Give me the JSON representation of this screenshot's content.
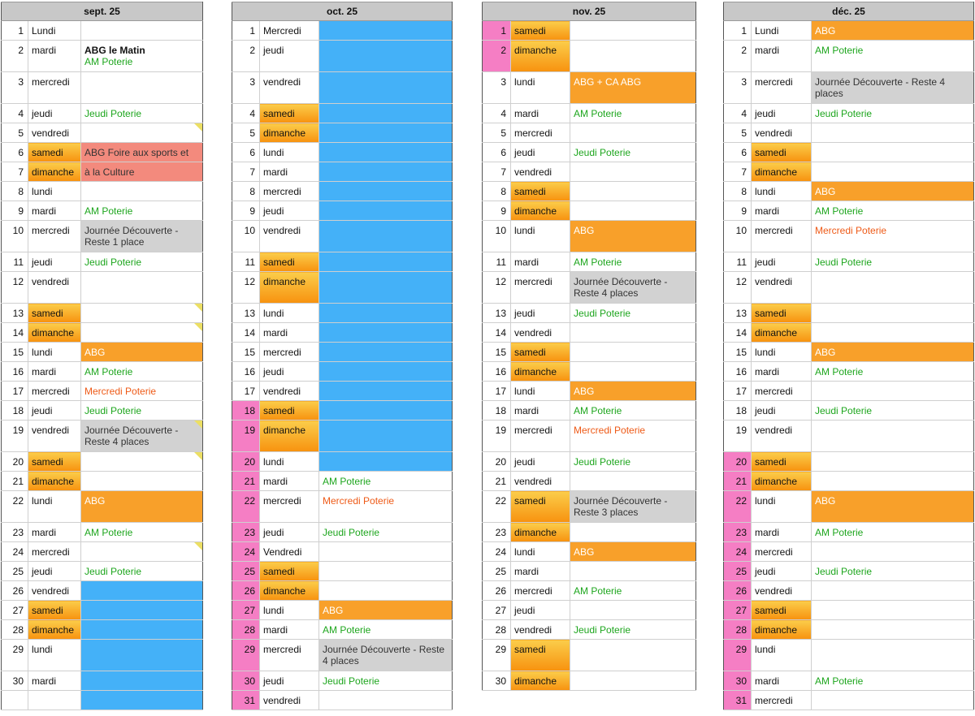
{
  "months": [
    {
      "header": "sept. 25",
      "rows": [
        {
          "n": "1",
          "d": "Lundi",
          "e": ""
        },
        {
          "n": "2",
          "d": "mardi",
          "e": "ABG le Matin",
          "e2": "AM Poterie",
          "c": "bold"
        },
        {
          "n": "3",
          "d": "mercredi",
          "e": ""
        },
        {
          "n": "4",
          "d": "jeudi",
          "e": "Jeudi Poterie",
          "c": "green"
        },
        {
          "n": "5",
          "d": "vendredi",
          "e": "",
          "note": true
        },
        {
          "n": "6",
          "d": "samedi",
          "e": "ABG Foire aux sports et",
          "c": "salmon",
          "we": true
        },
        {
          "n": "7",
          "d": "dimanche",
          "e": "à la Culture",
          "c": "salmon",
          "we": true
        },
        {
          "n": "8",
          "d": "lundi",
          "e": ""
        },
        {
          "n": "9",
          "d": "mardi",
          "e": "AM Poterie",
          "c": "green"
        },
        {
          "n": "10",
          "d": "mercredi",
          "e": "Journée Découverte - Reste 1 place",
          "c": "gray"
        },
        {
          "n": "11",
          "d": "jeudi",
          "e": "Jeudi Poterie",
          "c": "green"
        },
        {
          "n": "12",
          "d": "vendredi",
          "e": ""
        },
        {
          "n": "13",
          "d": "samedi",
          "e": "",
          "we": true,
          "note": true
        },
        {
          "n": "14",
          "d": "dimanche",
          "e": "",
          "we": true,
          "note": true
        },
        {
          "n": "15",
          "d": "lundi",
          "e": "ABG",
          "c": "orange"
        },
        {
          "n": "16",
          "d": "mardi",
          "e": "AM Poterie",
          "c": "green"
        },
        {
          "n": "17",
          "d": "mercredi",
          "e": "Mercredi Poterie",
          "c": "redtxt"
        },
        {
          "n": "18",
          "d": "jeudi",
          "e": "Jeudi Poterie",
          "c": "green"
        },
        {
          "n": "19",
          "d": "vendredi",
          "e": "Journée Découverte - Reste 4 places",
          "c": "gray",
          "note": true
        },
        {
          "n": "20",
          "d": "samedi",
          "e": "",
          "we": true,
          "note": true
        },
        {
          "n": "21",
          "d": "dimanche",
          "e": "",
          "we": true
        },
        {
          "n": "22",
          "d": "lundi",
          "e": "ABG",
          "c": "orange"
        },
        {
          "n": "23",
          "d": "mardi",
          "e": "AM Poterie",
          "c": "green"
        },
        {
          "n": "24",
          "d": "mercredi",
          "e": "",
          "note": true
        },
        {
          "n": "25",
          "d": "jeudi",
          "e": "Jeudi Poterie",
          "c": "green"
        },
        {
          "n": "26",
          "d": "vendredi",
          "e": "",
          "c": "blue"
        },
        {
          "n": "27",
          "d": "samedi",
          "e": "",
          "c": "blue",
          "we": true
        },
        {
          "n": "28",
          "d": "dimanche",
          "e": "",
          "c": "blue",
          "we": true
        },
        {
          "n": "29",
          "d": "lundi",
          "e": "",
          "c": "blue"
        },
        {
          "n": "30",
          "d": "mardi",
          "e": "",
          "c": "blue"
        },
        {
          "n": "",
          "d": "",
          "e": "",
          "c": "blue"
        }
      ]
    },
    {
      "header": "oct. 25",
      "rows": [
        {
          "n": "1",
          "d": "Mercredi",
          "e": "",
          "c": "blue"
        },
        {
          "n": "2",
          "d": "jeudi",
          "e": "",
          "c": "blue"
        },
        {
          "n": "3",
          "d": "vendredi",
          "e": "",
          "c": "blue"
        },
        {
          "n": "4",
          "d": "samedi",
          "e": "",
          "c": "blue",
          "we": true
        },
        {
          "n": "5",
          "d": "dimanche",
          "e": "",
          "c": "blue",
          "we": true
        },
        {
          "n": "6",
          "d": "lundi",
          "e": "",
          "c": "blue"
        },
        {
          "n": "7",
          "d": "mardi",
          "e": "",
          "c": "blue"
        },
        {
          "n": "8",
          "d": "mercredi",
          "e": "",
          "c": "blue"
        },
        {
          "n": "9",
          "d": "jeudi",
          "e": "",
          "c": "blue"
        },
        {
          "n": "10",
          "d": "vendredi",
          "e": "",
          "c": "blue"
        },
        {
          "n": "11",
          "d": "samedi",
          "e": "",
          "c": "blue",
          "we": true
        },
        {
          "n": "12",
          "d": "dimanche",
          "e": "",
          "c": "blue",
          "we": true
        },
        {
          "n": "13",
          "d": "lundi",
          "e": "",
          "c": "blue"
        },
        {
          "n": "14",
          "d": "mardi",
          "e": "",
          "c": "blue"
        },
        {
          "n": "15",
          "d": "mercredi",
          "e": "",
          "c": "blue"
        },
        {
          "n": "16",
          "d": "jeudi",
          "e": "",
          "c": "blue"
        },
        {
          "n": "17",
          "d": "vendredi",
          "e": "",
          "c": "blue"
        },
        {
          "n": "18",
          "d": "samedi",
          "e": "",
          "c": "blue",
          "we": true,
          "pink": true
        },
        {
          "n": "19",
          "d": "dimanche",
          "e": "",
          "c": "blue",
          "we": true,
          "pink": true
        },
        {
          "n": "20",
          "d": "lundi",
          "e": "",
          "c": "blue",
          "pink": true
        },
        {
          "n": "21",
          "d": "mardi",
          "e": "AM Poterie",
          "c": "green",
          "pink": true
        },
        {
          "n": "22",
          "d": "mercredi",
          "e": "Mercredi Poterie",
          "c": "redtxt",
          "pink": true
        },
        {
          "n": "23",
          "d": "jeudi",
          "e": "Jeudi Poterie",
          "c": "green",
          "pink": true
        },
        {
          "n": "24",
          "d": "Vendredi",
          "e": "",
          "pink": true
        },
        {
          "n": "25",
          "d": "samedi",
          "e": "",
          "we": true,
          "pink": true
        },
        {
          "n": "26",
          "d": "dimanche",
          "e": "",
          "we": true,
          "pink": true
        },
        {
          "n": "27",
          "d": "lundi",
          "e": "ABG",
          "c": "orange",
          "pink": true
        },
        {
          "n": "28",
          "d": "mardi",
          "e": "AM Poterie",
          "c": "green",
          "pink": true
        },
        {
          "n": "29",
          "d": "mercredi",
          "e": "Journée Découverte - Reste 4 places",
          "c": "gray",
          "pink": true
        },
        {
          "n": "30",
          "d": "jeudi",
          "e": "Jeudi Poterie",
          "c": "green",
          "pink": true
        },
        {
          "n": "31",
          "d": "vendredi",
          "e": "",
          "pink": true
        }
      ]
    },
    {
      "header": "nov. 25",
      "rows": [
        {
          "n": "1",
          "d": "samedi",
          "e": "",
          "we": true,
          "pink": true
        },
        {
          "n": "2",
          "d": "dimanche",
          "e": "",
          "we": true,
          "pink": true
        },
        {
          "n": "3",
          "d": "lundi",
          "e": "ABG + CA ABG",
          "c": "orange"
        },
        {
          "n": "4",
          "d": "mardi",
          "e": "AM Poterie",
          "c": "green"
        },
        {
          "n": "5",
          "d": "mercredi",
          "e": ""
        },
        {
          "n": "6",
          "d": "jeudi",
          "e": "Jeudi Poterie",
          "c": "green"
        },
        {
          "n": "7",
          "d": "vendredi",
          "e": ""
        },
        {
          "n": "8",
          "d": "samedi",
          "e": "",
          "we": true
        },
        {
          "n": "9",
          "d": "dimanche",
          "e": "",
          "we": true
        },
        {
          "n": "10",
          "d": "lundi",
          "e": "ABG",
          "c": "orange"
        },
        {
          "n": "11",
          "d": "mardi",
          "e": "AM Poterie",
          "c": "green"
        },
        {
          "n": "12",
          "d": "mercredi",
          "e": "Journée Découverte - Reste 4 places",
          "c": "gray"
        },
        {
          "n": "13",
          "d": "jeudi",
          "e": "Jeudi Poterie",
          "c": "green"
        },
        {
          "n": "14",
          "d": "vendredi",
          "e": ""
        },
        {
          "n": "15",
          "d": "samedi",
          "e": "",
          "we": true
        },
        {
          "n": "16",
          "d": "dimanche",
          "e": "",
          "we": true
        },
        {
          "n": "17",
          "d": "lundi",
          "e": "ABG",
          "c": "orange"
        },
        {
          "n": "18",
          "d": "mardi",
          "e": "AM Poterie",
          "c": "green"
        },
        {
          "n": "19",
          "d": "mercredi",
          "e": "Mercredi Poterie",
          "c": "redtxt"
        },
        {
          "n": "20",
          "d": "jeudi",
          "e": "Jeudi Poterie",
          "c": "green"
        },
        {
          "n": "21",
          "d": "vendredi",
          "e": ""
        },
        {
          "n": "22",
          "d": "samedi",
          "e": "Journée Découverte - Reste 3 places",
          "c": "gray",
          "we": true
        },
        {
          "n": "23",
          "d": "dimanche",
          "e": "",
          "we": true
        },
        {
          "n": "24",
          "d": "lundi",
          "e": "ABG",
          "c": "orange"
        },
        {
          "n": "25",
          "d": "mardi",
          "e": ""
        },
        {
          "n": "26",
          "d": "mercredi",
          "e": "AM Poterie",
          "c": "green"
        },
        {
          "n": "27",
          "d": "jeudi",
          "e": ""
        },
        {
          "n": "28",
          "d": "vendredi",
          "e": "Jeudi Poterie",
          "c": "green"
        },
        {
          "n": "29",
          "d": "samedi",
          "e": "",
          "we": true
        },
        {
          "n": "30",
          "d": "dimanche",
          "e": "",
          "we": true
        }
      ]
    },
    {
      "header": "déc. 25",
      "rows": [
        {
          "n": "1",
          "d": "Lundi",
          "e": "ABG",
          "c": "orange"
        },
        {
          "n": "2",
          "d": "mardi",
          "e": "AM Poterie",
          "c": "green"
        },
        {
          "n": "3",
          "d": "mercredi",
          "e": "Journée Découverte - Reste 4 places",
          "c": "gray"
        },
        {
          "n": "4",
          "d": "jeudi",
          "e": "Jeudi Poterie",
          "c": "green"
        },
        {
          "n": "5",
          "d": "vendredi",
          "e": ""
        },
        {
          "n": "6",
          "d": "samedi",
          "e": "",
          "we": true
        },
        {
          "n": "7",
          "d": "dimanche",
          "e": "",
          "we": true
        },
        {
          "n": "8",
          "d": "lundi",
          "e": "ABG",
          "c": "orange"
        },
        {
          "n": "9",
          "d": "mardi",
          "e": "AM Poterie",
          "c": "green"
        },
        {
          "n": "10",
          "d": "mercredi",
          "e": "Mercredi Poterie",
          "c": "redtxt"
        },
        {
          "n": "11",
          "d": "jeudi",
          "e": "Jeudi Poterie",
          "c": "green"
        },
        {
          "n": "12",
          "d": "vendredi",
          "e": ""
        },
        {
          "n": "13",
          "d": "samedi",
          "e": "",
          "we": true
        },
        {
          "n": "14",
          "d": "dimanche",
          "e": "",
          "we": true
        },
        {
          "n": "15",
          "d": "lundi",
          "e": "ABG",
          "c": "orange"
        },
        {
          "n": "16",
          "d": "mardi",
          "e": "AM Poterie",
          "c": "green"
        },
        {
          "n": "17",
          "d": "mercredi",
          "e": ""
        },
        {
          "n": "18",
          "d": "jeudi",
          "e": "Jeudi Poterie",
          "c": "green"
        },
        {
          "n": "19",
          "d": "vendredi",
          "e": ""
        },
        {
          "n": "20",
          "d": "samedi",
          "e": "",
          "we": true,
          "pink": true
        },
        {
          "n": "21",
          "d": "dimanche",
          "e": "",
          "we": true,
          "pink": true
        },
        {
          "n": "22",
          "d": "lundi",
          "e": "ABG",
          "c": "orange",
          "pink": true
        },
        {
          "n": "23",
          "d": "mardi",
          "e": "AM Poterie",
          "c": "green",
          "pink": true
        },
        {
          "n": "24",
          "d": "mercredi",
          "e": "",
          "pink": true
        },
        {
          "n": "25",
          "d": "jeudi",
          "e": "Jeudi Poterie",
          "c": "green",
          "pink": true
        },
        {
          "n": "26",
          "d": "vendredi",
          "e": "",
          "pink": true
        },
        {
          "n": "27",
          "d": "samedi",
          "e": "",
          "we": true,
          "pink": true
        },
        {
          "n": "28",
          "d": "dimanche",
          "e": "",
          "we": true,
          "pink": true
        },
        {
          "n": "29",
          "d": "lundi",
          "e": "",
          "pink": true
        },
        {
          "n": "30",
          "d": "mardi",
          "e": "AM Poterie",
          "c": "green",
          "pink": true
        },
        {
          "n": "31",
          "d": "mercredi",
          "e": "",
          "pink": true
        }
      ]
    }
  ],
  "colors": {
    "header_bg": "#c8c8c8",
    "weekend_gradient": [
      "#fbcd4a",
      "#f7920f"
    ],
    "holiday_pink": "#f57ec4",
    "abg_orange": "#f8a02a",
    "vacation_blue": "#44b1f8",
    "discovery_gray": "#d2d2d2",
    "fair_salmon": "#f38a7d",
    "poterie_green": "#1ea61e",
    "mercredi_orange_text": "#ee5a17"
  }
}
